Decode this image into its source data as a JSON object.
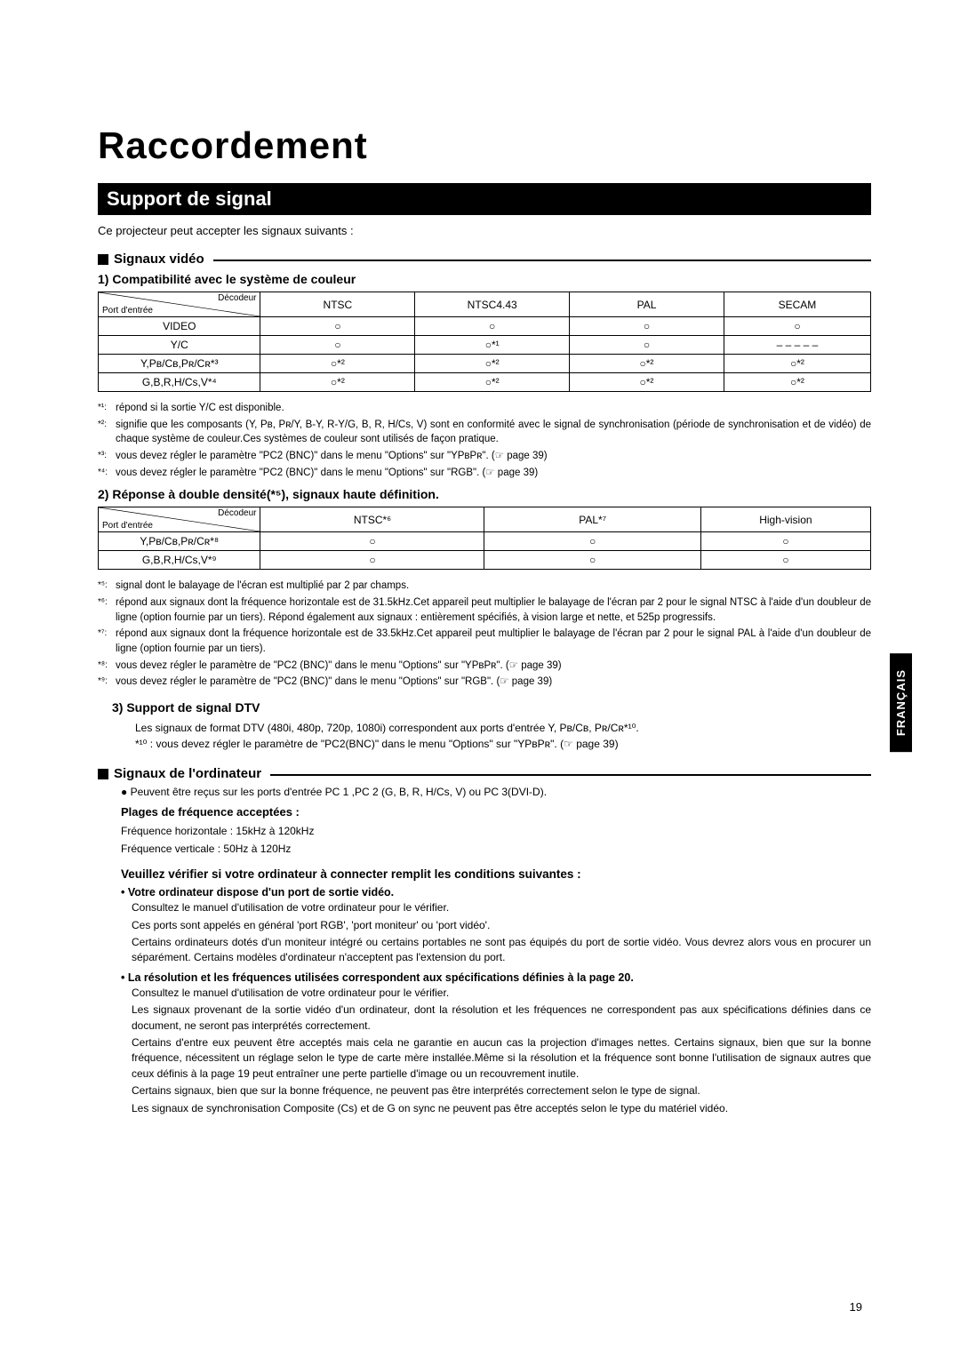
{
  "page": {
    "title": "Raccordement",
    "section": "Support de signal",
    "intro": "Ce projecteur peut accepter les signaux suivants :",
    "page_number": "19",
    "lang_tab": "FRANÇAIS"
  },
  "video": {
    "heading": "Signaux vidéo",
    "sub1": "1) Compatibilité avec le système de couleur",
    "table1": {
      "decodeur": "Décodeur",
      "port": "Port d'entrée",
      "headers": [
        "NTSC",
        "NTSC4.43",
        "PAL",
        "SECAM"
      ],
      "rows": [
        {
          "label": "VIDEO",
          "cells": [
            "○",
            "○",
            "○",
            "○"
          ]
        },
        {
          "label": "Y/C",
          "cells": [
            "○",
            "○*¹",
            "○",
            "– – – – –"
          ]
        },
        {
          "label": "Y,Pʙ/Cʙ,Pʀ/Cʀ*³",
          "cells": [
            "○*²",
            "○*²",
            "○*²",
            "○*²"
          ]
        },
        {
          "label": "G,B,R,H/Cs,V*⁴",
          "cells": [
            "○*²",
            "○*²",
            "○*²",
            "○*²"
          ]
        }
      ]
    },
    "notes1": [
      {
        "lbl": "*¹:",
        "txt": "répond si la sortie Y/C est disponible."
      },
      {
        "lbl": "*²:",
        "txt": "signifie que les composants (Y, Pʙ, Pʀ/Y, B-Y, R-Y/G, B, R, H/Cs, V) sont en conformité avec le signal de synchronisation (période de synchronisation et de vidéo) de chaque système de couleur.Ces systèmes de couleur sont utilisés de façon pratique."
      },
      {
        "lbl": "*³:",
        "txt": "vous devez régler le paramètre \"PC2 (BNC)\" dans le menu \"Options\" sur \"YPʙPʀ\". (☞ page 39)"
      },
      {
        "lbl": "*⁴:",
        "txt": "vous devez régler le paramètre \"PC2 (BNC)\" dans le menu \"Options\" sur \"RGB\". (☞ page 39)"
      }
    ],
    "sub2": "2) Réponse à  double densité(*⁵), signaux haute définition.",
    "table2": {
      "decodeur": "Décodeur",
      "port": "Port d'entrée",
      "headers": [
        "NTSC*⁶",
        "PAL*⁷",
        "High-vision"
      ],
      "rows": [
        {
          "label": "Y,Pʙ/Cʙ,Pʀ/Cʀ*⁸",
          "cells": [
            "○",
            "○",
            "○"
          ]
        },
        {
          "label": "G,B,R,H/Cs,V*⁹",
          "cells": [
            "○",
            "○",
            "○"
          ]
        }
      ]
    },
    "notes2": [
      {
        "lbl": "*⁵:",
        "txt": "signal dont le balayage de l'écran est multiplié par 2 par champs."
      },
      {
        "lbl": "*⁶:",
        "txt": "répond aux signaux dont la fréquence horizontale est de 31.5kHz.Cet appareil peut multiplier le balayage de l'écran par 2 pour le signal NTSC à l'aide d'un doubleur de ligne (option fournie par un tiers). Répond également aux signaux : entièrement spécifiés, à vision large et nette,  et 525p progressifs."
      },
      {
        "lbl": "*⁷:",
        "txt": "répond aux signaux dont la fréquence horizontale est de 33.5kHz.Cet appareil peut multiplier le balayage de l'écran par 2 pour le signal PAL à l'aide d'un doubleur de ligne (option fournie par un tiers)."
      },
      {
        "lbl": "*⁸:",
        "txt": "vous devez régler le paramètre de \"PC2 (BNC)\" dans le menu \"Options\" sur \"YPʙPʀ\". (☞ page 39)"
      },
      {
        "lbl": "*⁹:",
        "txt": "vous devez régler le paramètre de \"PC2 (BNC)\" dans le menu \"Options\" sur \"RGB\". (☞ page 39)"
      }
    ],
    "sub3": "3) Support de signal DTV",
    "dtv_lines": [
      "Les signaux de format DTV (480i, 480p, 720p, 1080i) correspondent aux ports d'entrée Y, Pʙ/Cʙ, Pʀ/Cʀ*¹⁰.",
      "*¹⁰ : vous devez régler le paramètre de \"PC2(BNC)\" dans le menu \"Options\" sur \"YPʙPʀ\". (☞ page 39)"
    ]
  },
  "computer": {
    "heading": "Signaux de l'ordinateur",
    "line1": "● Peuvent être reçus sur les ports d'entrée  PC 1 ,PC 2 (G, B, R, H/Cs, V) ou PC 3(DVI-D).",
    "freq_head": "Plages de fréquence acceptées :",
    "freq1": "Fréquence horizontale  : 15kHz à 120kHz",
    "freq2": "Fréquence verticale       : 50Hz à 120Hz",
    "check_head": "Veuillez vérifier si votre ordinateur à connecter remplit les conditions suivantes :",
    "b1_head": "•  Votre ordinateur dispose d'un port de sortie vidéo.",
    "b1_lines": [
      "Consultez le manuel d'utilisation de votre ordinateur pour le vérifier.",
      "Ces ports sont appelés en général 'port RGB', 'port moniteur' ou 'port vidéo'.",
      "Certains ordinateurs dotés d'un moniteur intégré ou certains portables ne sont pas équipés du port de sortie vidéo. Vous devrez alors vous en procurer un séparément. Certains modèles d'ordinateur n'acceptent pas l'extension du port."
    ],
    "b2_head": "•  La résolution et les fréquences utilisées correspondent aux spécifications définies à la page 20.",
    "b2_lines": [
      "Consultez le manuel d'utilisation de votre ordinateur pour le vérifier.",
      "Les signaux provenant de la sortie vidéo d'un ordinateur, dont la résolution et les fréquences ne correspondent pas aux spécifications définies dans ce document, ne seront pas interprétés correctement.",
      "Certains d'entre eux peuvent être acceptés mais cela ne garantie en aucun cas la projection d'images nettes. Certains signaux, bien que sur la bonne fréquence, nécessitent un réglage selon le type de carte mère installée.Même si la résolution et la fréquence sont bonne l'utilisation de signaux autres que ceux définis à la page 19 peut entraîner une perte partielle d'image ou un recouvrement inutile.",
      "Certains signaux, bien que sur la bonne fréquence, ne peuvent pas être interprétés correctement selon le type de signal.",
      "Les signaux de synchronisation Composite (Cs) et de G on sync ne peuvent pas être acceptés selon le type du matériel vidéo."
    ]
  }
}
